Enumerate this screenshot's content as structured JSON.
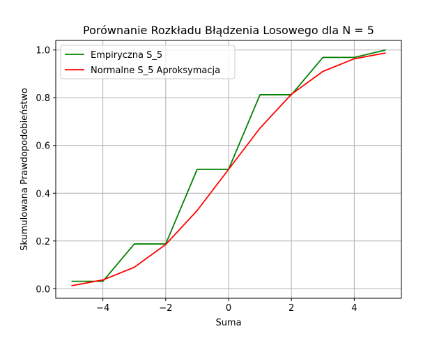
{
  "chart_data": {
    "type": "line",
    "title": "Porównanie Rozkładu Błądzenia Losowego dla N = 5",
    "xlabel": "Suma",
    "ylabel": "Skumulowana Prawdopodobieństwo",
    "xlim": [
      -5.5,
      5.5
    ],
    "ylim": [
      -0.04,
      1.04
    ],
    "x_ticks": [
      -4,
      -2,
      0,
      2,
      4
    ],
    "x_tick_labels": [
      "−4",
      "−2",
      "0",
      "2",
      "4"
    ],
    "y_ticks": [
      0.0,
      0.2,
      0.4,
      0.6,
      0.8,
      1.0
    ],
    "y_tick_labels": [
      "0.0",
      "0.2",
      "0.4",
      "0.6",
      "0.8",
      "1.0"
    ],
    "grid": true,
    "legend_position": "top-left",
    "series": [
      {
        "name": "Empiryczna S_5",
        "color": "#008000",
        "x": [
          -5,
          -4,
          -3,
          -2,
          -1,
          0,
          1,
          2,
          3,
          4,
          5
        ],
        "y": [
          0.03125,
          0.03125,
          0.1875,
          0.1875,
          0.5,
          0.5,
          0.8125,
          0.8125,
          0.96875,
          0.96875,
          1.0
        ]
      },
      {
        "name": "Normalne S_5 Aproksymacja",
        "color": "#ff0000",
        "x": [
          -5,
          -4,
          -3,
          -2,
          -1,
          0,
          1,
          2,
          3,
          4,
          5
        ],
        "y": [
          0.0127,
          0.0368,
          0.0899,
          0.1855,
          0.3274,
          0.5,
          0.6726,
          0.8145,
          0.9101,
          0.9632,
          0.9873
        ]
      }
    ]
  }
}
